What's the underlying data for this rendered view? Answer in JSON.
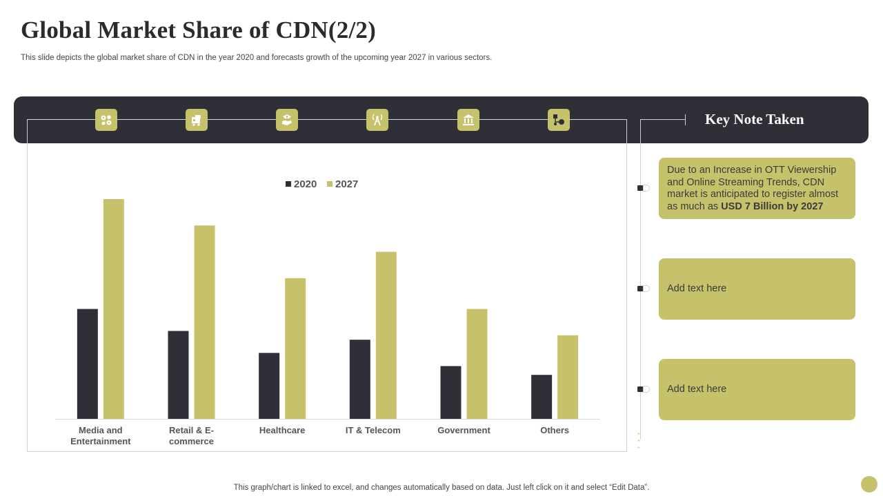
{
  "page": {
    "title": "Global Market Share of CDN(2/2)",
    "subtitle": "This slide depicts the global market share of CDN in the year 2020 and forecasts growth of the upcoming year 2027 in various sectors.",
    "footer": "This graph/chart is linked to excel,  and changes automatically based on data. Just left click on it and select “Edit Data”."
  },
  "icons": [
    "media-icon",
    "shopping-cart-icon",
    "healthcare-hand-icon",
    "telecom-tower-icon",
    "government-building-icon",
    "others-network-icon"
  ],
  "key_notes": {
    "title": "Key Note Taken",
    "note1_text": "Due to an Increase in OTT Viewership and Online Streaming Trends, CDN market is anticipated to register almost as much as ",
    "note1_bold": "USD 7 Billion by 2027",
    "note2": "Add text here",
    "note3": "Add text here"
  },
  "colors": {
    "dark": "#2e2f37",
    "accent": "#c6c26c",
    "text": "#444444"
  },
  "chart_data": {
    "type": "bar",
    "categories": [
      "Media and Entertainment",
      "Retail & E-commerce",
      "Healthcare",
      "IT & Telecom",
      "Government",
      "Others"
    ],
    "category_lines": [
      [
        "Media and",
        "Entertainment"
      ],
      [
        "Retail & E-",
        "commerce"
      ],
      [
        "Healthcare"
      ],
      [
        "IT & Telecom"
      ],
      [
        "Government"
      ],
      [
        "Others"
      ]
    ],
    "series": [
      {
        "name": "2020",
        "values": [
          50,
          40,
          30,
          36,
          24,
          20
        ],
        "color": "#2e2f37"
      },
      {
        "name": "2027",
        "values": [
          100,
          88,
          64,
          76,
          50,
          38
        ],
        "color": "#c6c26c"
      }
    ],
    "ylim": [
      0,
      100
    ],
    "legend": "top-center",
    "grid": false
  }
}
